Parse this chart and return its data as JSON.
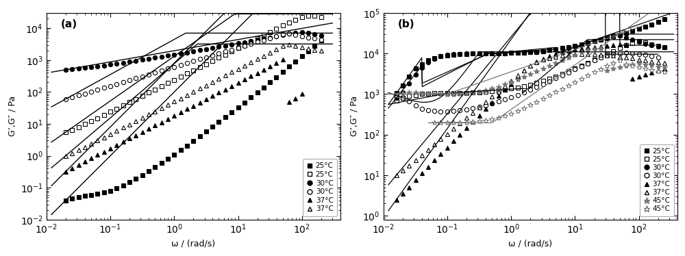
{
  "panel_a": {
    "title": "(a)",
    "xlabel": "ω / (rad/s)",
    "ylabel": "G’,G″ / Pa",
    "xlim": [
      0.01,
      400
    ],
    "ylim": [
      0.01,
      30000
    ]
  },
  "panel_b": {
    "title": "(b)",
    "xlabel": "ω / (rad/s)",
    "ylabel": "G’,G″ / Pa",
    "xlim": [
      0.01,
      400
    ],
    "ylim": [
      0.8,
      100000
    ]
  }
}
